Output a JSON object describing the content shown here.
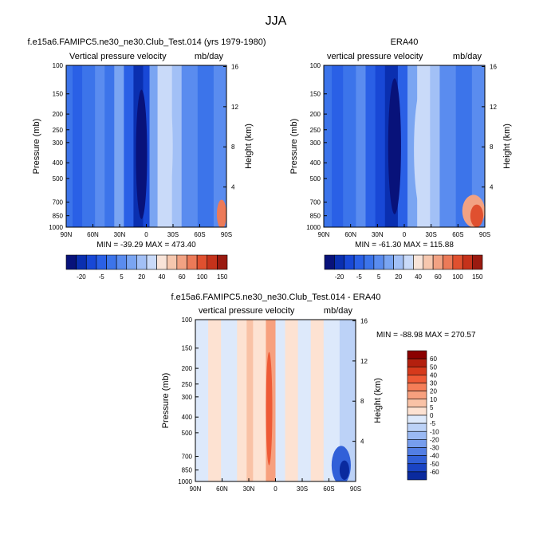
{
  "figure": {
    "title": "JJA"
  },
  "chart_data": [
    {
      "type": "heatmap",
      "title": "f.e15a6.FAMIPC5.ne30_ne30.Club_Test.014 (yrs 1979-1980)",
      "left_label": "Vertical pressure velocity",
      "right_label": "mb/day",
      "xlabel": "",
      "ylabel": "Pressure (mb)",
      "y2label": "Height (km)",
      "x_ticks": [
        "90N",
        "60N",
        "30N",
        "0",
        "30S",
        "60S",
        "90S"
      ],
      "y_ticks": [
        "100",
        "150",
        "200",
        "250",
        "300",
        "400",
        "500",
        "700",
        "850",
        "1000"
      ],
      "y2_ticks": [
        "16",
        "12",
        "8",
        "4"
      ],
      "stats": "MIN = -39.29  MAX = 473.40",
      "colorbar": {
        "orientation": "horizontal",
        "labels": [
          "-20",
          "-5",
          "5",
          "20",
          "40",
          "60",
          "100",
          "150"
        ],
        "colors": [
          "#08127a",
          "#0a2fb0",
          "#1848d6",
          "#2a60e6",
          "#3c74ea",
          "#5a8cef",
          "#7aa5f2",
          "#a2c0f6",
          "#c9daf9",
          "#f9e4d8",
          "#f6c7ae",
          "#f2a283",
          "#ec7a58",
          "#e0502f",
          "#c5321b",
          "#9a1a10"
        ]
      }
    },
    {
      "type": "heatmap",
      "title": "ERA40",
      "left_label": "vertical pressure velocity",
      "right_label": "mb/day",
      "xlabel": "",
      "ylabel": "Pressure (mb)",
      "y2label": "Height (km)",
      "x_ticks": [
        "90N",
        "60N",
        "30N",
        "0",
        "30S",
        "60S",
        "90S"
      ],
      "y_ticks": [
        "100",
        "150",
        "200",
        "250",
        "300",
        "400",
        "500",
        "700",
        "850",
        "1000"
      ],
      "y2_ticks": [
        "16",
        "12",
        "8",
        "4"
      ],
      "stats": "MIN = -61.30  MAX = 115.88",
      "colorbar": {
        "orientation": "horizontal",
        "labels": [
          "-20",
          "-5",
          "5",
          "20",
          "40",
          "60",
          "100",
          "150"
        ],
        "colors": [
          "#08127a",
          "#0a2fb0",
          "#1848d6",
          "#2a60e6",
          "#3c74ea",
          "#5a8cef",
          "#7aa5f2",
          "#a2c0f6",
          "#c9daf9",
          "#f9e4d8",
          "#f6c7ae",
          "#f2a283",
          "#ec7a58",
          "#e0502f",
          "#c5321b",
          "#9a1a10"
        ]
      }
    },
    {
      "type": "heatmap",
      "title": "f.e15a6.FAMIPC5.ne30_ne30.Club_Test.014 - ERA40",
      "left_label": "vertical pressure velocity",
      "right_label": "mb/day",
      "xlabel": "",
      "ylabel": "Pressure (mb)",
      "y2label": "Height (km)",
      "x_ticks": [
        "90N",
        "60N",
        "30N",
        "0",
        "30S",
        "60S",
        "90S"
      ],
      "y_ticks": [
        "100",
        "150",
        "200",
        "250",
        "300",
        "400",
        "500",
        "700",
        "850",
        "1000"
      ],
      "y2_ticks": [
        "16",
        "12",
        "8",
        "4"
      ],
      "stats": "MIN = -88.98  MAX = 270.57",
      "colorbar": {
        "orientation": "vertical",
        "labels": [
          "60",
          "50",
          "40",
          "30",
          "20",
          "10",
          "5",
          "0",
          "-5",
          "-10",
          "-20",
          "-30",
          "-40",
          "-50",
          "-60"
        ],
        "colors": [
          "#8b0000",
          "#b3200e",
          "#d63a1c",
          "#ee5a36",
          "#f57e58",
          "#f7a07e",
          "#f9c2a6",
          "#fde2d2",
          "#dde9fb",
          "#bcd2f7",
          "#9ab9f3",
          "#769ded",
          "#527ee4",
          "#3160d8",
          "#1a44c4",
          "#0a2a9e"
        ]
      }
    }
  ]
}
